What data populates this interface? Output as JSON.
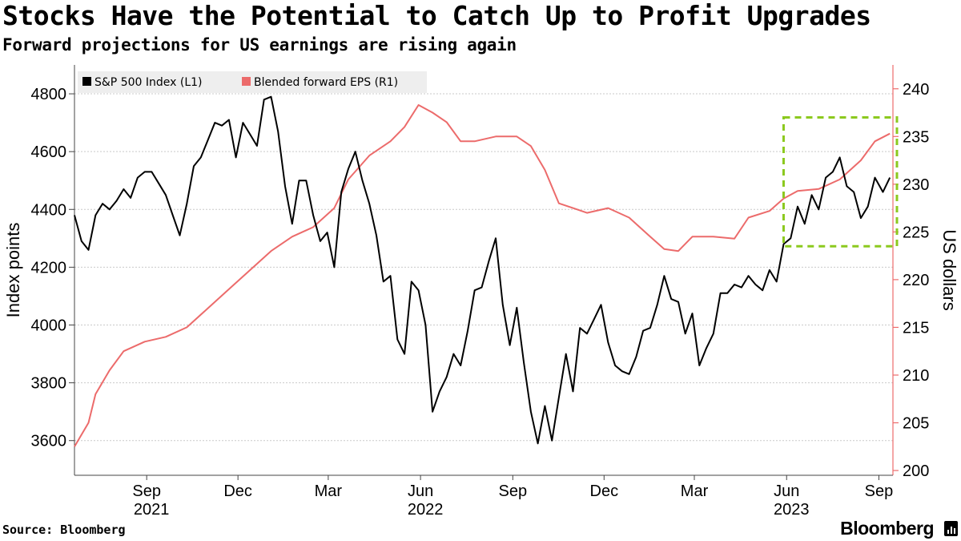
{
  "title": "Stocks Have the Potential to Catch Up to Profit Upgrades",
  "subtitle": "Forward projections for US earnings are rising again",
  "source": "Source: Bloomberg",
  "brand": "Bloomberg",
  "colors": {
    "spx": "#000000",
    "eps": "#ec6b6b",
    "highlight": "#8cc91f",
    "grid": "#c9c9c9",
    "legend_bg": "#eeeeee"
  },
  "chart_data": {
    "type": "line",
    "x_start": "2021-06-21",
    "x_end": "2023-09-15",
    "left_axis": {
      "label": "Index points",
      "range": [
        3480,
        4900
      ],
      "ticks": [
        3600,
        3800,
        4000,
        4200,
        4400,
        4600,
        4800
      ]
    },
    "right_axis": {
      "label": "US dollars",
      "range": [
        199.5,
        242.5
      ],
      "ticks": [
        200,
        205,
        210,
        215,
        220,
        225,
        230,
        235,
        240
      ]
    },
    "x_ticks": [
      {
        "date": "2021-09-01",
        "label": "Sep",
        "year": "2021"
      },
      {
        "date": "2021-12-01",
        "label": "Dec",
        "year": ""
      },
      {
        "date": "2022-03-01",
        "label": "Mar",
        "year": ""
      },
      {
        "date": "2022-06-01",
        "label": "Jun",
        "year": "2022"
      },
      {
        "date": "2022-09-01",
        "label": "Sep",
        "year": ""
      },
      {
        "date": "2022-12-01",
        "label": "Dec",
        "year": ""
      },
      {
        "date": "2023-03-01",
        "label": "Mar",
        "year": ""
      },
      {
        "date": "2023-06-01",
        "label": "Jun",
        "year": "2023"
      },
      {
        "date": "2023-09-01",
        "label": "Sep",
        "year": ""
      }
    ],
    "grid": "horizontal",
    "legend_position": "top-left",
    "series": [
      {
        "name": "S&P 500 Index (L1)",
        "axis": "left",
        "points": [
          [
            "2021-06-21",
            4380
          ],
          [
            "2021-06-28",
            4290
          ],
          [
            "2021-07-05",
            4260
          ],
          [
            "2021-07-12",
            4380
          ],
          [
            "2021-07-19",
            4420
          ],
          [
            "2021-07-26",
            4400
          ],
          [
            "2021-08-02",
            4430
          ],
          [
            "2021-08-09",
            4470
          ],
          [
            "2021-08-16",
            4440
          ],
          [
            "2021-08-23",
            4510
          ],
          [
            "2021-08-30",
            4530
          ],
          [
            "2021-09-06",
            4530
          ],
          [
            "2021-09-13",
            4490
          ],
          [
            "2021-09-20",
            4450
          ],
          [
            "2021-09-27",
            4380
          ],
          [
            "2021-10-04",
            4310
          ],
          [
            "2021-10-11",
            4420
          ],
          [
            "2021-10-18",
            4550
          ],
          [
            "2021-10-25",
            4580
          ],
          [
            "2021-11-01",
            4640
          ],
          [
            "2021-11-08",
            4700
          ],
          [
            "2021-11-15",
            4690
          ],
          [
            "2021-11-22",
            4710
          ],
          [
            "2021-11-29",
            4580
          ],
          [
            "2021-12-06",
            4700
          ],
          [
            "2021-12-13",
            4660
          ],
          [
            "2021-12-20",
            4620
          ],
          [
            "2021-12-27",
            4780
          ],
          [
            "2022-01-03",
            4790
          ],
          [
            "2022-01-10",
            4670
          ],
          [
            "2022-01-17",
            4480
          ],
          [
            "2022-01-24",
            4350
          ],
          [
            "2022-01-31",
            4500
          ],
          [
            "2022-02-07",
            4500
          ],
          [
            "2022-02-14",
            4380
          ],
          [
            "2022-02-21",
            4290
          ],
          [
            "2022-02-28",
            4320
          ],
          [
            "2022-03-07",
            4200
          ],
          [
            "2022-03-14",
            4460
          ],
          [
            "2022-03-21",
            4540
          ],
          [
            "2022-03-28",
            4600
          ],
          [
            "2022-04-04",
            4500
          ],
          [
            "2022-04-11",
            4420
          ],
          [
            "2022-04-18",
            4310
          ],
          [
            "2022-04-25",
            4150
          ],
          [
            "2022-05-02",
            4170
          ],
          [
            "2022-05-09",
            3950
          ],
          [
            "2022-05-16",
            3900
          ],
          [
            "2022-05-23",
            4150
          ],
          [
            "2022-05-30",
            4120
          ],
          [
            "2022-06-06",
            4000
          ],
          [
            "2022-06-13",
            3700
          ],
          [
            "2022-06-20",
            3770
          ],
          [
            "2022-06-27",
            3820
          ],
          [
            "2022-07-04",
            3900
          ],
          [
            "2022-07-11",
            3860
          ],
          [
            "2022-07-18",
            3980
          ],
          [
            "2022-07-25",
            4120
          ],
          [
            "2022-08-01",
            4130
          ],
          [
            "2022-08-08",
            4220
          ],
          [
            "2022-08-15",
            4300
          ],
          [
            "2022-08-22",
            4070
          ],
          [
            "2022-08-29",
            3930
          ],
          [
            "2022-09-05",
            4060
          ],
          [
            "2022-09-12",
            3870
          ],
          [
            "2022-09-19",
            3700
          ],
          [
            "2022-09-26",
            3590
          ],
          [
            "2022-10-03",
            3720
          ],
          [
            "2022-10-10",
            3600
          ],
          [
            "2022-10-17",
            3750
          ],
          [
            "2022-10-24",
            3900
          ],
          [
            "2022-10-31",
            3770
          ],
          [
            "2022-11-07",
            3990
          ],
          [
            "2022-11-14",
            3970
          ],
          [
            "2022-11-21",
            4020
          ],
          [
            "2022-11-28",
            4070
          ],
          [
            "2022-12-05",
            3940
          ],
          [
            "2022-12-12",
            3860
          ],
          [
            "2022-12-19",
            3840
          ],
          [
            "2022-12-26",
            3830
          ],
          [
            "2023-01-02",
            3890
          ],
          [
            "2023-01-09",
            3980
          ],
          [
            "2023-01-16",
            3990
          ],
          [
            "2023-01-23",
            4070
          ],
          [
            "2023-01-30",
            4170
          ],
          [
            "2023-02-06",
            4090
          ],
          [
            "2023-02-13",
            4080
          ],
          [
            "2023-02-20",
            3970
          ],
          [
            "2023-02-27",
            4040
          ],
          [
            "2023-03-06",
            3860
          ],
          [
            "2023-03-13",
            3920
          ],
          [
            "2023-03-20",
            3970
          ],
          [
            "2023-03-27",
            4110
          ],
          [
            "2023-04-03",
            4110
          ],
          [
            "2023-04-10",
            4140
          ],
          [
            "2023-04-17",
            4130
          ],
          [
            "2023-04-24",
            4170
          ],
          [
            "2023-05-01",
            4140
          ],
          [
            "2023-05-08",
            4120
          ],
          [
            "2023-05-15",
            4190
          ],
          [
            "2023-05-22",
            4150
          ],
          [
            "2023-05-29",
            4280
          ],
          [
            "2023-06-05",
            4300
          ],
          [
            "2023-06-12",
            4410
          ],
          [
            "2023-06-19",
            4350
          ],
          [
            "2023-06-26",
            4450
          ],
          [
            "2023-07-03",
            4400
          ],
          [
            "2023-07-10",
            4510
          ],
          [
            "2023-07-17",
            4530
          ],
          [
            "2023-07-24",
            4580
          ],
          [
            "2023-07-31",
            4480
          ],
          [
            "2023-08-07",
            4460
          ],
          [
            "2023-08-14",
            4370
          ],
          [
            "2023-08-21",
            4410
          ],
          [
            "2023-08-28",
            4510
          ],
          [
            "2023-09-05",
            4460
          ],
          [
            "2023-09-12",
            4510
          ]
        ]
      },
      {
        "name": "Blended forward EPS (R1)",
        "axis": "right",
        "points": [
          [
            "2021-06-21",
            202.5
          ],
          [
            "2021-07-05",
            205
          ],
          [
            "2021-07-12",
            208
          ],
          [
            "2021-07-26",
            210.5
          ],
          [
            "2021-08-09",
            212.5
          ],
          [
            "2021-08-30",
            213.5
          ],
          [
            "2021-09-20",
            214
          ],
          [
            "2021-10-11",
            215
          ],
          [
            "2021-11-01",
            217
          ],
          [
            "2021-11-22",
            219
          ],
          [
            "2021-12-13",
            221
          ],
          [
            "2022-01-03",
            223
          ],
          [
            "2022-01-24",
            224.5
          ],
          [
            "2022-02-14",
            225.5
          ],
          [
            "2022-03-07",
            227.5
          ],
          [
            "2022-03-21",
            230.5
          ],
          [
            "2022-04-11",
            233
          ],
          [
            "2022-05-02",
            234.5
          ],
          [
            "2022-05-16",
            236
          ],
          [
            "2022-05-30",
            238.3
          ],
          [
            "2022-06-13",
            237.5
          ],
          [
            "2022-06-27",
            236.5
          ],
          [
            "2022-07-11",
            234.5
          ],
          [
            "2022-07-25",
            234.5
          ],
          [
            "2022-08-15",
            235
          ],
          [
            "2022-09-05",
            235
          ],
          [
            "2022-09-19",
            234
          ],
          [
            "2022-10-03",
            231.5
          ],
          [
            "2022-10-17",
            228
          ],
          [
            "2022-10-31",
            227.5
          ],
          [
            "2022-11-14",
            227
          ],
          [
            "2022-12-05",
            227.5
          ],
          [
            "2022-12-26",
            226.5
          ],
          [
            "2023-01-16",
            224.5
          ],
          [
            "2023-01-30",
            223.2
          ],
          [
            "2023-02-13",
            223
          ],
          [
            "2023-02-27",
            224.5
          ],
          [
            "2023-03-20",
            224.5
          ],
          [
            "2023-04-10",
            224.3
          ],
          [
            "2023-04-24",
            226.5
          ],
          [
            "2023-05-15",
            227.2
          ],
          [
            "2023-05-29",
            228.5
          ],
          [
            "2023-06-12",
            229.3
          ],
          [
            "2023-07-03",
            229.5
          ],
          [
            "2023-07-24",
            230.5
          ],
          [
            "2023-08-14",
            232.5
          ],
          [
            "2023-08-28",
            234.5
          ],
          [
            "2023-09-12",
            235.3
          ]
        ]
      }
    ],
    "highlight": {
      "from": "2023-05-29",
      "to": "2023-09-19",
      "right_axis_range": [
        223.5,
        237
      ]
    }
  }
}
